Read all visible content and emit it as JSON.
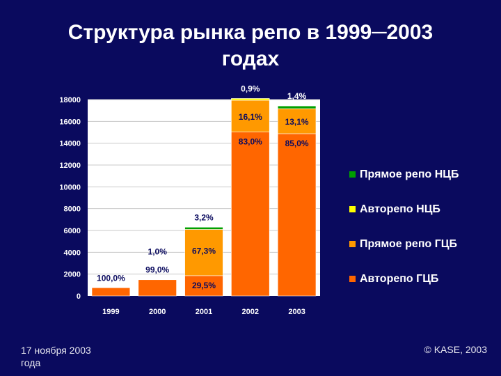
{
  "title": {
    "line1": "Структура рынка репо в 1999─2003",
    "line2": "годах"
  },
  "footer": {
    "date": "17 ноября 2003 года",
    "copyright": "© KASE, 2003"
  },
  "colors": {
    "background": "#0a0a5e",
    "plot_background": "#ffffff",
    "gridline": "#c8c8c8"
  },
  "chart_data": {
    "type": "bar",
    "stacked": true,
    "categories": [
      "1999",
      "2000",
      "2001",
      "2002",
      "2003"
    ],
    "ylim": [
      0,
      18000
    ],
    "yticks": [
      0,
      2000,
      4000,
      6000,
      8000,
      10000,
      12000,
      14000,
      16000,
      18000
    ],
    "grid": true,
    "legend_position": "right",
    "totals": [
      750,
      1500,
      6300,
      18100,
      17500
    ],
    "series": [
      {
        "name": "Авторепо ГЦБ",
        "color": "#ff6600",
        "values": [
          750,
          1485,
          1859,
          15023,
          14875
        ],
        "labels": [
          "100,0%",
          "99,0%",
          "29,5%",
          "83,0%",
          "85,0%"
        ]
      },
      {
        "name": "Прямое репо ГЦБ",
        "color": "#ff9900",
        "values": [
          0,
          15,
          4240,
          2914,
          2293
        ],
        "labels": [
          "",
          "1,0%",
          "67,3%",
          "16,1%",
          "13,1%"
        ]
      },
      {
        "name": "Авторепо НЦБ",
        "color": "#ffff00",
        "values": [
          0,
          0,
          0,
          163,
          0
        ],
        "labels": [
          "",
          "",
          "",
          "0,9%",
          ""
        ]
      },
      {
        "name": "Прямое репо НЦБ",
        "color": "#00a000",
        "values": [
          0,
          0,
          201,
          0,
          245
        ],
        "labels": [
          "",
          "",
          "3,2%",
          "",
          "1,4%"
        ]
      }
    ],
    "legend_order": [
      "Прямое репо НЦБ",
      "Авторепо НЦБ",
      "Прямое репо ГЦБ",
      "Авторепо ГЦБ"
    ]
  }
}
